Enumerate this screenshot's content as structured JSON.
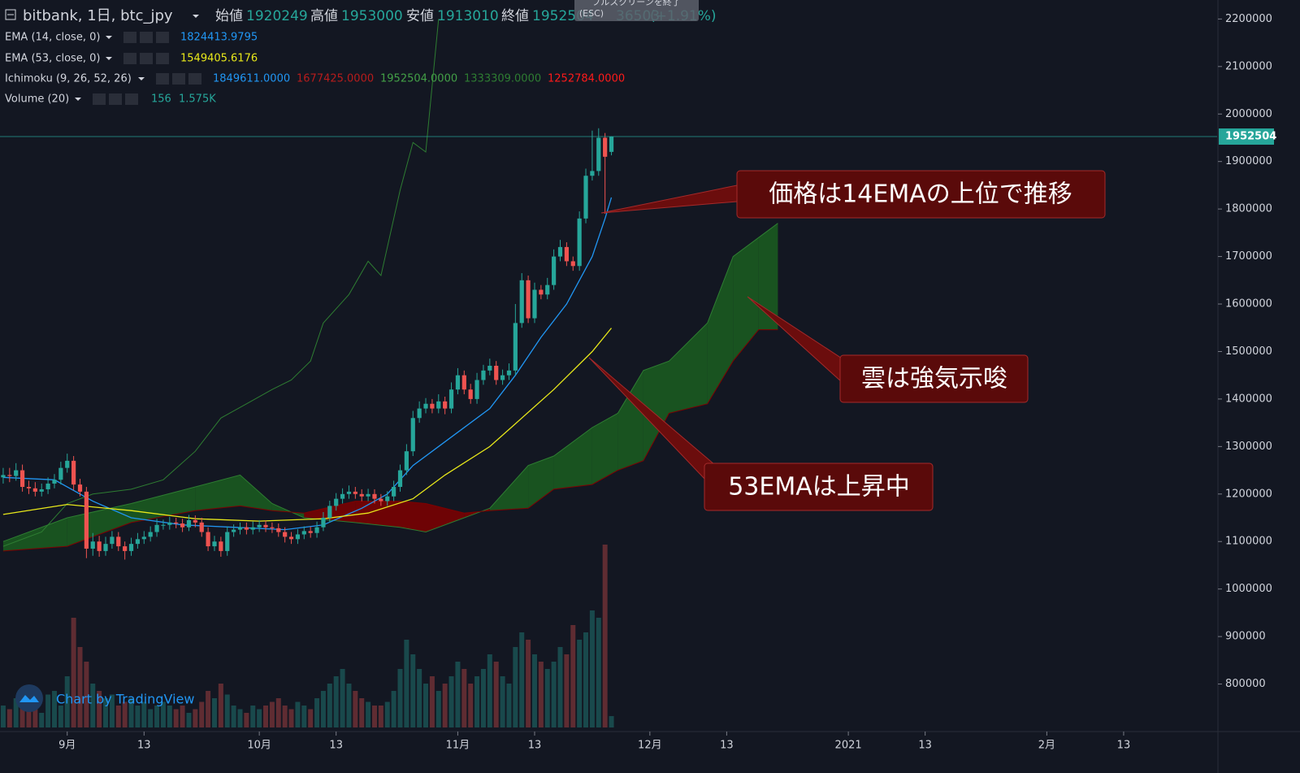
{
  "chart_data": {
    "type": "candlestick",
    "title": "bitbank, 1日, btc_jpy",
    "labels": {
      "open": "始値",
      "high": "高値",
      "low": "安値",
      "close": "終値"
    },
    "change": 36503,
    "change_label": "(+1.91%)",
    "overlay": {
      "line1": "フルスクリーンを終了",
      "line2": "(ESC)"
    },
    "watermark": "Chart by TradingView",
    "colors": {
      "up": "#26a69a",
      "down": "#ef5350",
      "price_line": "#26a69a"
    },
    "xlim": [
      -0.5,
      189.6
    ],
    "ylim": [
      700000,
      2240000
    ],
    "xticks": [
      {
        "value": 10,
        "label": "9月"
      },
      {
        "value": 22,
        "label": "13"
      },
      {
        "value": 40,
        "label": "10月"
      },
      {
        "value": 52,
        "label": "13"
      },
      {
        "value": 71,
        "label": "11月"
      },
      {
        "value": 83,
        "label": "13"
      },
      {
        "value": 101,
        "label": "12月"
      },
      {
        "value": 113,
        "label": "13"
      },
      {
        "value": 132,
        "label": "2021"
      },
      {
        "value": 144,
        "label": "13"
      },
      {
        "value": 163,
        "label": "2月"
      },
      {
        "value": 175,
        "label": "13"
      }
    ],
    "yticks": [
      800000,
      900000,
      1000000,
      1100000,
      1200000,
      1300000,
      1400000,
      1500000,
      1600000,
      1700000,
      1800000,
      1900000,
      2000000,
      2100000,
      2200000
    ],
    "open": [
      1235000,
      1240000,
      1238000,
      1250000,
      1215000,
      1212000,
      1205000,
      1210000,
      1222000,
      1230000,
      1255000,
      1270000,
      1220000,
      1205000,
      1085000,
      1100000,
      1080000,
      1095000,
      1110000,
      1090000,
      1080000,
      1095000,
      1105000,
      1110000,
      1120000,
      1135000,
      1135000,
      1140000,
      1138000,
      1130000,
      1145000,
      1140000,
      1120000,
      1090000,
      1100000,
      1080000,
      1120000,
      1125000,
      1130000,
      1125000,
      1130000,
      1135000,
      1130000,
      1128000,
      1120000,
      1110000,
      1105000,
      1115000,
      1122000,
      1118000,
      1130000,
      1150000,
      1175000,
      1190000,
      1200000,
      1205000,
      1200000,
      1195000,
      1200000,
      1190000,
      1185000,
      1195000,
      1215000,
      1250000,
      1290000,
      1360000,
      1380000,
      1390000,
      1380000,
      1395000,
      1380000,
      1420000,
      1450000,
      1420000,
      1400000,
      1440000,
      1460000,
      1470000,
      1440000,
      1450000,
      1460000,
      1560000,
      1650000,
      1570000,
      1630000,
      1620000,
      1640000,
      1700000,
      1720000,
      1690000,
      1680000,
      1780000,
      1870000,
      1880000,
      1950000,
      1920249
    ],
    "high": [
      1255000,
      1255000,
      1265000,
      1262000,
      1228000,
      1225000,
      1222000,
      1235000,
      1242000,
      1268000,
      1285000,
      1280000,
      1232000,
      1215000,
      1118000,
      1112000,
      1110000,
      1122000,
      1120000,
      1100000,
      1108000,
      1118000,
      1122000,
      1132000,
      1148000,
      1146000,
      1152000,
      1150000,
      1148000,
      1156000,
      1155000,
      1150000,
      1130000,
      1112000,
      1110000,
      1132000,
      1136000,
      1140000,
      1140000,
      1142000,
      1145000,
      1144000,
      1140000,
      1138000,
      1130000,
      1120000,
      1126000,
      1132000,
      1131000,
      1142000,
      1162000,
      1186000,
      1202000,
      1212000,
      1218000,
      1215000,
      1210000,
      1211000,
      1210000,
      1200000,
      1206000,
      1228000,
      1262000,
      1305000,
      1375000,
      1395000,
      1402000,
      1400000,
      1410000,
      1405000,
      1435000,
      1465000,
      1460000,
      1432000,
      1455000,
      1472000,
      1485000,
      1480000,
      1462000,
      1475000,
      1600000,
      1665000,
      1660000,
      1645000,
      1640000,
      1655000,
      1715000,
      1735000,
      1730000,
      1700000,
      1795000,
      1885000,
      1965000,
      1970000,
      1960000,
      1953000
    ],
    "low": [
      1222000,
      1225000,
      1228000,
      1205000,
      1200000,
      1195000,
      1195000,
      1200000,
      1212000,
      1220000,
      1245000,
      1208000,
      1195000,
      1065000,
      1070000,
      1068000,
      1070000,
      1085000,
      1080000,
      1062000,
      1070000,
      1085000,
      1095000,
      1100000,
      1110000,
      1125000,
      1125000,
      1128000,
      1120000,
      1122000,
      1130000,
      1110000,
      1080000,
      1080000,
      1068000,
      1070000,
      1110000,
      1115000,
      1115000,
      1115000,
      1120000,
      1120000,
      1118000,
      1110000,
      1098000,
      1095000,
      1095000,
      1105000,
      1108000,
      1108000,
      1122000,
      1140000,
      1165000,
      1180000,
      1190000,
      1190000,
      1185000,
      1185000,
      1180000,
      1175000,
      1175000,
      1185000,
      1205000,
      1240000,
      1280000,
      1350000,
      1370000,
      1370000,
      1370000,
      1368000,
      1370000,
      1410000,
      1410000,
      1390000,
      1390000,
      1430000,
      1450000,
      1430000,
      1430000,
      1440000,
      1450000,
      1550000,
      1560000,
      1560000,
      1610000,
      1610000,
      1630000,
      1690000,
      1680000,
      1670000,
      1670000,
      1770000,
      1860000,
      1870000,
      1790000,
      1913010
    ],
    "close": [
      1240000,
      1238000,
      1250000,
      1215000,
      1212000,
      1205000,
      1210000,
      1222000,
      1230000,
      1255000,
      1270000,
      1220000,
      1205000,
      1085000,
      1100000,
      1080000,
      1095000,
      1110000,
      1090000,
      1080000,
      1095000,
      1105000,
      1110000,
      1120000,
      1135000,
      1135000,
      1140000,
      1138000,
      1130000,
      1145000,
      1140000,
      1120000,
      1090000,
      1100000,
      1080000,
      1120000,
      1125000,
      1130000,
      1125000,
      1130000,
      1135000,
      1130000,
      1128000,
      1120000,
      1110000,
      1105000,
      1115000,
      1122000,
      1118000,
      1130000,
      1150000,
      1175000,
      1190000,
      1200000,
      1205000,
      1200000,
      1195000,
      1200000,
      1190000,
      1185000,
      1195000,
      1215000,
      1250000,
      1290000,
      1360000,
      1380000,
      1390000,
      1380000,
      1395000,
      1380000,
      1420000,
      1450000,
      1420000,
      1400000,
      1440000,
      1460000,
      1470000,
      1440000,
      1450000,
      1460000,
      1560000,
      1650000,
      1570000,
      1630000,
      1620000,
      1640000,
      1700000,
      1720000,
      1690000,
      1680000,
      1780000,
      1870000,
      1880000,
      1950000,
      1910000,
      1952504
    ],
    "volume": {
      "name": "Volume (20)",
      "ma": {
        "value": 1575,
        "label": "1.575K"
      },
      "values": [
        300,
        250,
        400,
        350,
        300,
        250,
        200,
        450,
        500,
        300,
        700,
        1500,
        1100,
        900,
        600,
        500,
        400,
        450,
        300,
        350,
        400,
        300,
        350,
        250,
        300,
        350,
        300,
        250,
        300,
        200,
        250,
        350,
        500,
        400,
        600,
        450,
        300,
        250,
        200,
        300,
        250,
        300,
        350,
        400,
        300,
        250,
        350,
        300,
        250,
        400,
        500,
        600,
        700,
        800,
        600,
        500,
        400,
        350,
        300,
        300,
        350,
        500,
        800,
        1200,
        1000,
        800,
        600,
        700,
        500,
        600,
        700,
        900,
        800,
        600,
        700,
        800,
        1000,
        900,
        700,
        600,
        1100,
        1300,
        1200,
        1000,
        900,
        800,
        900,
        1100,
        1000,
        1400,
        1200,
        1300,
        1600,
        1500,
        2500,
        156
      ]
    },
    "series": [
      {
        "name": "EMA (14, close, 0)",
        "color": "#2196f3",
        "x": [
          0,
          8,
          14,
          20,
          28,
          36,
          44,
          50,
          56,
          60,
          64,
          70,
          76,
          80,
          84,
          88,
          92,
          94,
          95
        ],
        "values": [
          1235000,
          1230000,
          1185000,
          1150000,
          1135000,
          1130000,
          1125000,
          1135000,
          1170000,
          1200000,
          1260000,
          1320000,
          1380000,
          1450000,
          1530000,
          1600000,
          1700000,
          1780000,
          1824413.9795
        ]
      },
      {
        "name": "EMA (53, close, 0)",
        "color": "#e8e81a",
        "x": [
          0,
          10,
          20,
          30,
          40,
          50,
          57,
          64,
          69,
          76,
          81,
          86,
          92,
          95
        ],
        "values": [
          1157000,
          1178000,
          1165000,
          1148000,
          1143000,
          1148000,
          1160000,
          1190000,
          1240000,
          1300000,
          1360000,
          1420000,
          1500000,
          1549405.6176
        ]
      }
    ],
    "ichimoku": {
      "name": "Ichimoku (9, 26, 52, 26)",
      "legend_values": [
        {
          "value": 1849611,
          "label": "1849611.0000"
        },
        {
          "value": 1677425,
          "label": "1677425.0000"
        },
        {
          "value": 1952504,
          "label": "1952504.0000"
        },
        {
          "value": 1333309,
          "label": "1333309.0000"
        },
        {
          "value": 1252784,
          "label": "1252784.0000"
        }
      ],
      "legend_colors": [
        "#2196f3",
        "#b71c1c",
        "#43a047",
        "#2e7d32",
        "#ff1a1a"
      ],
      "cloud_colors": {
        "up": "#1b5e20",
        "down": "#7f0000"
      },
      "span_a": {
        "color": "#2e7d32",
        "x": [
          0,
          10,
          20,
          30,
          37,
          42,
          47,
          55,
          62,
          66,
          72,
          76,
          82,
          86,
          92,
          96,
          100,
          104,
          110,
          114,
          118,
          121
        ],
        "values": [
          1100000,
          1150000,
          1180000,
          1215000,
          1240000,
          1180000,
          1150000,
          1140000,
          1130000,
          1120000,
          1150000,
          1170000,
          1260000,
          1280000,
          1340000,
          1370000,
          1460000,
          1480000,
          1560000,
          1700000,
          1740000,
          1770000
        ]
      },
      "span_b": {
        "color": "#7f0000",
        "x": [
          0,
          10,
          20,
          30,
          37,
          42,
          47,
          55,
          62,
          66,
          72,
          76,
          82,
          86,
          92,
          96,
          100,
          104,
          110,
          114,
          118,
          121
        ],
        "values": [
          1080000,
          1090000,
          1140000,
          1165000,
          1175000,
          1165000,
          1160000,
          1185000,
          1185000,
          1180000,
          1160000,
          1165000,
          1170000,
          1210000,
          1220000,
          1250000,
          1270000,
          1370000,
          1390000,
          1480000,
          1546000,
          1546000
        ]
      },
      "lagging": {
        "color": "#2e7d32",
        "x": [
          0,
          6,
          10,
          14,
          20,
          25,
          30,
          34,
          38,
          42,
          45,
          48,
          50,
          54,
          57,
          59,
          62,
          64,
          66,
          68
        ],
        "values": [
          1090000,
          1120000,
          1180000,
          1200000,
          1210000,
          1230000,
          1290000,
          1360000,
          1390000,
          1420000,
          1440000,
          1480000,
          1560000,
          1620000,
          1690000,
          1660000,
          1840000,
          1940000,
          1920000,
          2200000
        ]
      }
    },
    "annotations": [
      "価格は14EMAの上位で推移",
      "雲は強気示唆",
      "53EMAは上昇中"
    ]
  }
}
